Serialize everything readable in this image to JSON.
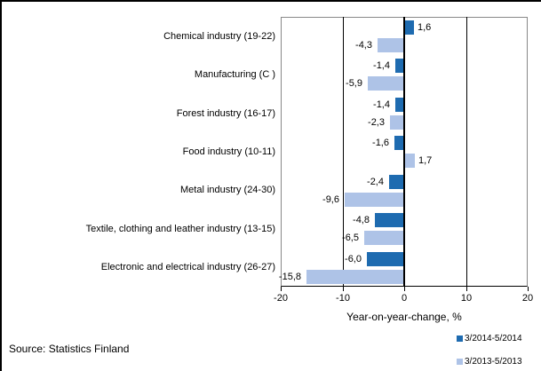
{
  "chart_data": {
    "type": "bar",
    "orientation": "horizontal",
    "categories": [
      "Chemical industry (19-22)",
      "Manufacturing (C )",
      "Forest industry (16-17)",
      "Food industry (10-11)",
      "Metal industry (24-30)",
      "Textile, clothing and leather industry (13-15)",
      "Electronic and electrical industry (26-27)"
    ],
    "series": [
      {
        "name": "3/2014-5/2014",
        "color": "#1E6BB0",
        "values": [
          1.6,
          -1.4,
          -1.4,
          -1.6,
          -2.4,
          -4.8,
          -6.0
        ]
      },
      {
        "name": "3/2013-5/2013",
        "color": "#AEC3E7",
        "values": [
          -4.3,
          -5.9,
          -2.3,
          1.7,
          -9.6,
          -6.5,
          -15.8
        ]
      }
    ],
    "value_labels": [
      [
        "1,6",
        "-1,4",
        "-1,4",
        "-1,6",
        "-2,4",
        "-4,8",
        "-6,0"
      ],
      [
        "-4,3",
        "-5,9",
        "-2,3",
        "1,7",
        "-9,6",
        "-6,5",
        "-15,8"
      ]
    ],
    "xlabel": "Year-on-year-change, %",
    "xlim": [
      -20,
      20
    ],
    "xticks": [
      -20,
      -10,
      0,
      10,
      20
    ],
    "xtick_labels": [
      "-20",
      "-10",
      "0",
      "10",
      "20"
    ],
    "grid": true,
    "legend_position": "bottom-right"
  },
  "colors": {
    "series_dark": "#1E6BB0",
    "series_light": "#AEC3E7",
    "plot_border": "#888888",
    "axis": "#000000",
    "frame": "#000000",
    "background": "#FFFFFF"
  },
  "source_note": "Source: Statistics Finland"
}
